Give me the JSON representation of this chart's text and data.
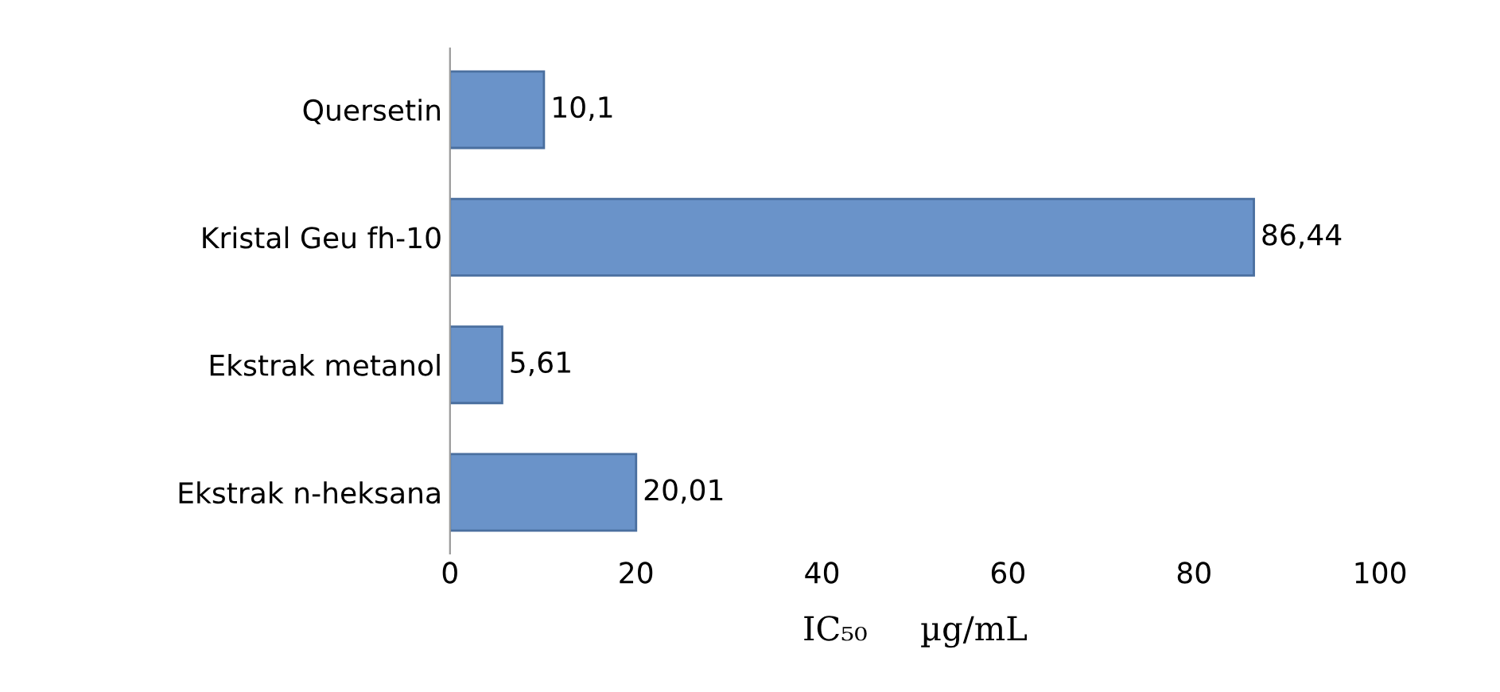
{
  "chart_data": {
    "type": "bar",
    "orientation": "horizontal",
    "categories": [
      "Quersetin",
      "Kristal Geu fh-10",
      "Ekstrak metanol",
      "Ekstrak n-heksana"
    ],
    "values": [
      10.1,
      86.44,
      5.61,
      20.01
    ],
    "value_labels": [
      "10,1",
      "86,44",
      "5,61",
      "20,01"
    ],
    "color": "#6a93c9",
    "xlabel": "IC₅₀     µg/mL",
    "xlim": [
      0,
      100
    ],
    "xticks": [
      0,
      20,
      40,
      60,
      80,
      100
    ],
    "grid": false,
    "legend": false
  }
}
